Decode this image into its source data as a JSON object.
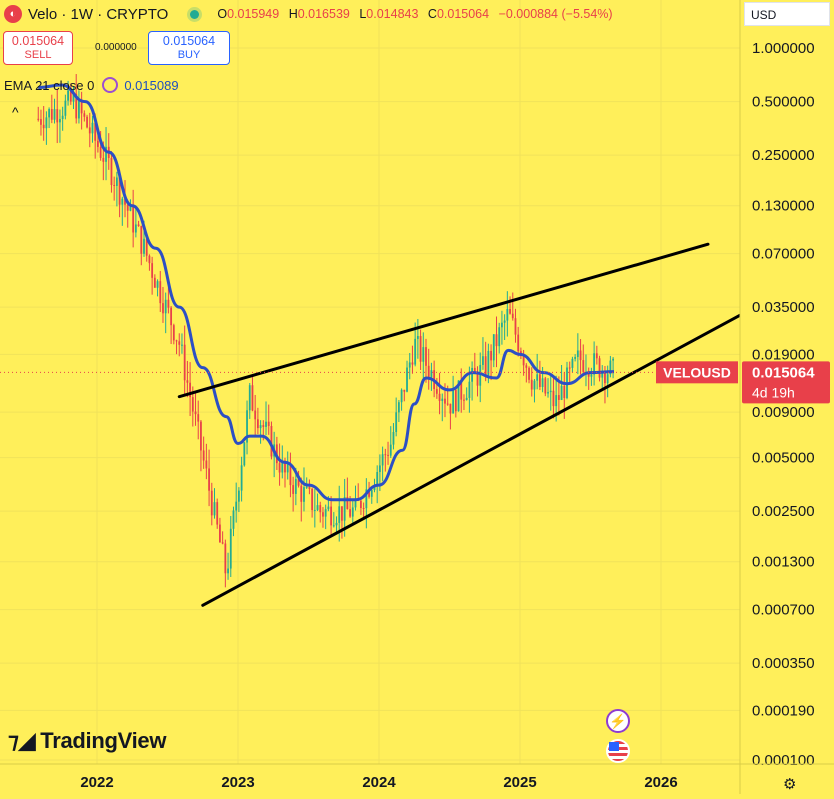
{
  "header": {
    "title": "Velo · 1W · CRYPTO",
    "ohlc": [
      {
        "k": "O",
        "v": "0.015949"
      },
      {
        "k": "H",
        "v": "0.016539"
      },
      {
        "k": "L",
        "v": "0.014843"
      },
      {
        "k": "C",
        "v": "0.015064"
      },
      {
        "k": "",
        "v": "−0.000884 (−5.54%)"
      }
    ]
  },
  "trade": {
    "sell_price": "0.015064",
    "sell_label": "SELL",
    "spread": "0.000000",
    "buy_price": "0.015064",
    "buy_label": "BUY"
  },
  "indicator": {
    "label": "EMA 21 close 0",
    "value": "0.015089",
    "caret": "^"
  },
  "currency": "USD",
  "watermark": "TradingView",
  "price_tag": {
    "symbol": "VELOUSD",
    "price": "0.015064",
    "countdown": "4d 19h"
  },
  "colors": {
    "background": "#FFEF5A",
    "up": "#22AB94",
    "down": "#E8404A",
    "ema": "#2C4FC4",
    "trendline": "#000000"
  },
  "chart_data": {
    "type": "candlestick",
    "scale": "log",
    "interval": "1W",
    "x_ticks": [
      "2022",
      "2023",
      "2024",
      "2025",
      "2026"
    ],
    "y_ticks": [
      "1.000000",
      "0.500000",
      "0.250000",
      "0.130000",
      "0.070000",
      "0.035000",
      "0.019000",
      "0.015064",
      "0.009000",
      "0.005000",
      "0.002500",
      "0.001300",
      "0.000700",
      "0.000350",
      "0.000190",
      "0.000100"
    ],
    "ylim": [
      0.0001,
      1.0
    ],
    "last_price": 0.015064,
    "ema_path": [
      [
        "2021-08",
        0.6
      ],
      [
        "2021-10",
        0.62
      ],
      [
        "2021-12",
        0.5
      ],
      [
        "2022-02",
        0.26
      ],
      [
        "2022-04",
        0.13
      ],
      [
        "2022-06",
        0.075
      ],
      [
        "2022-08",
        0.035
      ],
      [
        "2022-10",
        0.016
      ],
      [
        "2022-12",
        0.0085
      ],
      [
        "2023-01",
        0.006
      ],
      [
        "2023-02",
        0.0066
      ],
      [
        "2023-03",
        0.0066
      ],
      [
        "2023-05",
        0.0047
      ],
      [
        "2023-07",
        0.0035
      ],
      [
        "2023-09",
        0.0029
      ],
      [
        "2023-11",
        0.0029
      ],
      [
        "2024-01",
        0.0035
      ],
      [
        "2024-03",
        0.0055
      ],
      [
        "2024-04",
        0.01
      ],
      [
        "2024-05",
        0.014
      ],
      [
        "2024-07",
        0.012
      ],
      [
        "2024-09",
        0.015
      ],
      [
        "2024-11",
        0.014
      ],
      [
        "2024-12",
        0.02
      ],
      [
        "2025-01",
        0.019
      ],
      [
        "2025-03",
        0.015
      ],
      [
        "2025-05",
        0.013
      ],
      [
        "2025-07",
        0.015
      ],
      [
        "2025-09",
        0.0152
      ]
    ],
    "trendlines": [
      {
        "from": [
          "2022-08",
          0.011
        ],
        "to": [
          "2026-05",
          0.079
        ]
      },
      {
        "from": [
          "2022-10",
          0.00074
        ],
        "to": [
          "2026-10",
          0.038
        ]
      }
    ],
    "candle_envelope": [
      [
        "2021-08",
        0.4
      ],
      [
        "2021-11",
        0.5
      ],
      [
        "2022-02",
        0.22
      ],
      [
        "2022-05",
        0.075
      ],
      [
        "2022-08",
        0.022
      ],
      [
        "2022-10",
        0.005
      ],
      [
        "2022-12",
        0.0011
      ],
      [
        "2023-02",
        0.011
      ],
      [
        "2023-05",
        0.004
      ],
      [
        "2023-08",
        0.0025
      ],
      [
        "2023-11",
        0.0025
      ],
      [
        "2024-02",
        0.006
      ],
      [
        "2024-04",
        0.022
      ],
      [
        "2024-07",
        0.01
      ],
      [
        "2024-10",
        0.016
      ],
      [
        "2024-12",
        0.032
      ],
      [
        "2025-02",
        0.014
      ],
      [
        "2025-04",
        0.01
      ],
      [
        "2025-06",
        0.018
      ],
      [
        "2025-09",
        0.015
      ]
    ]
  }
}
